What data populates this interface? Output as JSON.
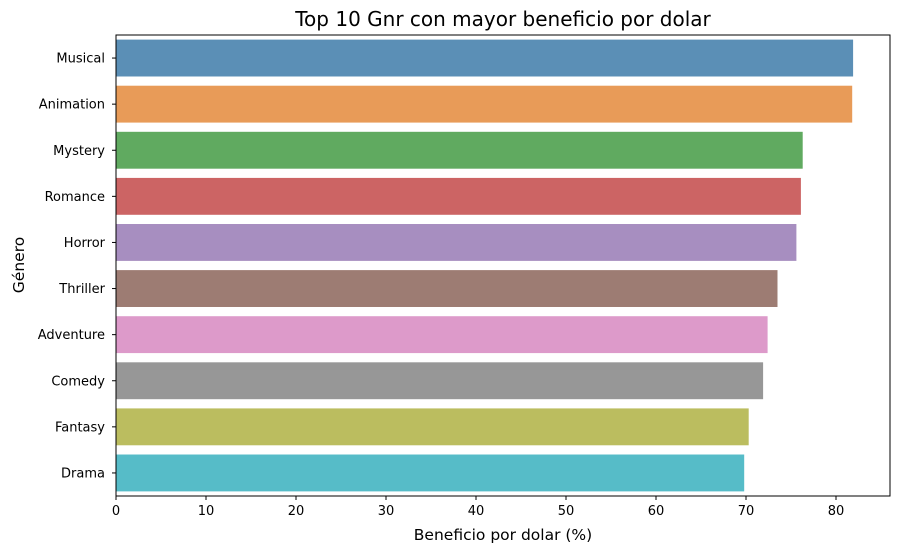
{
  "chart_data": {
    "type": "bar",
    "orientation": "horizontal",
    "title": "Top 10 Gnr con mayor beneficio por dolar",
    "xlabel": "Beneficio por dolar (%)",
    "ylabel": "Género",
    "categories": [
      "Musical",
      "Animation",
      "Mystery",
      "Romance",
      "Horror",
      "Thriller",
      "Adventure",
      "Comedy",
      "Fantasy",
      "Drama"
    ],
    "values": [
      81.9,
      81.8,
      76.3,
      76.1,
      75.6,
      73.5,
      72.4,
      71.9,
      70.3,
      69.8
    ],
    "colors": [
      "#5b8fb6",
      "#e89b58",
      "#60aa60",
      "#cc6464",
      "#a78ec0",
      "#9d7c73",
      "#dd9aca",
      "#979797",
      "#bbbd5f",
      "#56bcc8"
    ],
    "xlim": [
      0,
      86
    ],
    "xticks": [
      0,
      10,
      20,
      30,
      40,
      50,
      60,
      70,
      80
    ],
    "grid": false
  }
}
